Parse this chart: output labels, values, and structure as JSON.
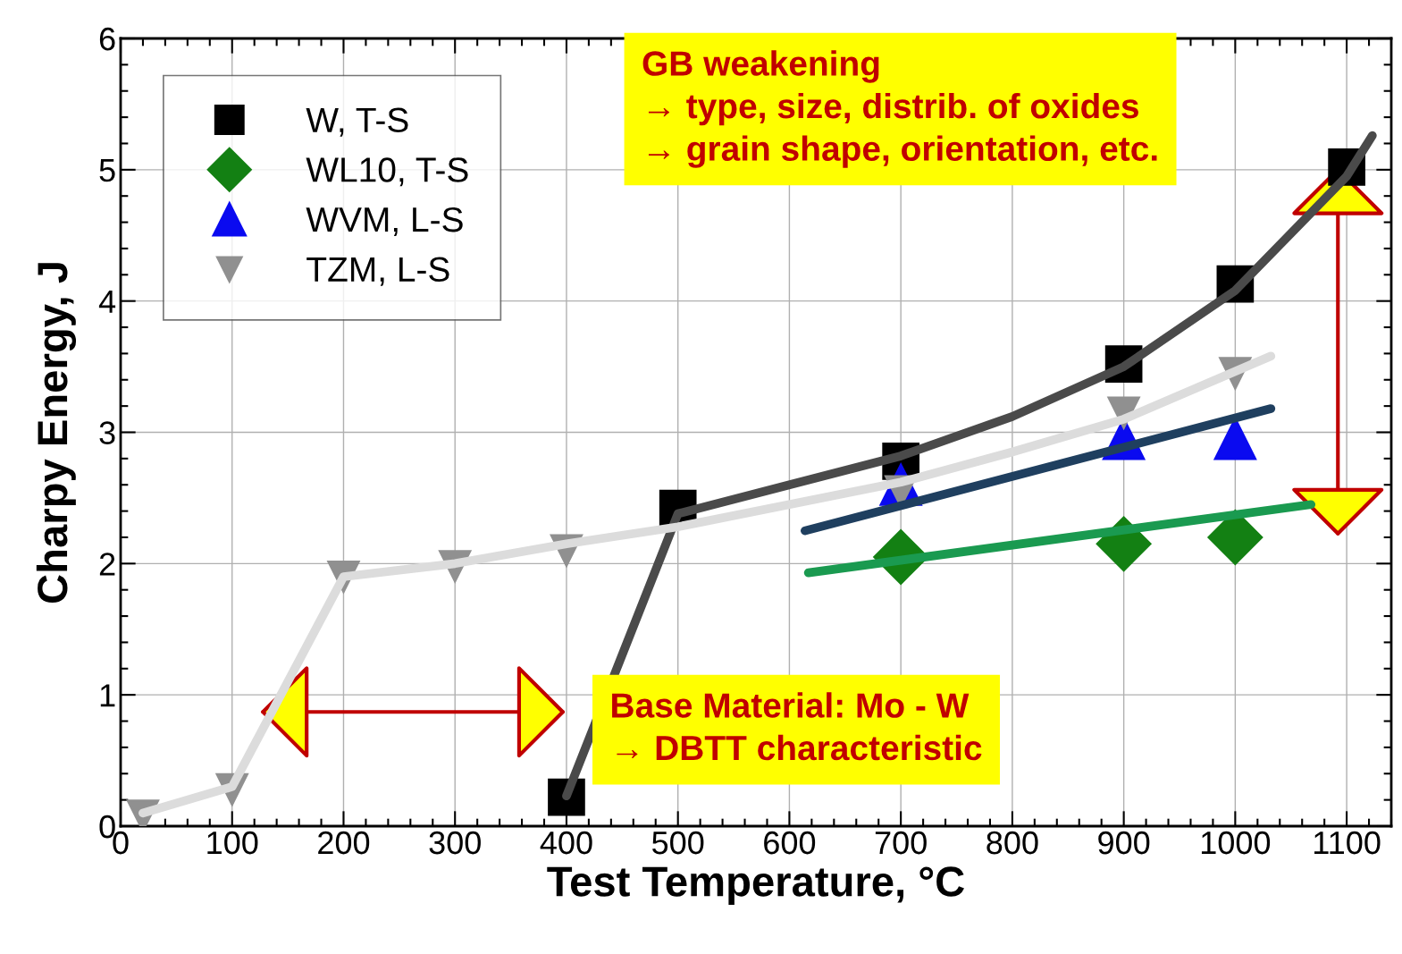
{
  "chart_data": {
    "type": "scatter",
    "xlabel": "Test Temperature, °C",
    "ylabel": "Charpy Energy, J",
    "xlim": [
      0,
      1140
    ],
    "xticks": [
      0,
      100,
      200,
      300,
      400,
      500,
      600,
      700,
      800,
      900,
      1000,
      1100
    ],
    "ylim": [
      0,
      6
    ],
    "yticks": [
      0,
      1,
      2,
      3,
      4,
      5,
      6
    ],
    "grid": true,
    "legend": "top left",
    "series": [
      {
        "type": "line",
        "color": "#4a4a4a",
        "x": [
          400,
          500,
          600,
          700,
          800,
          900,
          1000,
          1100,
          1123
        ],
        "values": [
          0.23,
          2.38,
          2.6,
          2.82,
          3.12,
          3.5,
          4.08,
          4.95,
          5.26
        ]
      },
      {
        "type": "line",
        "color": "#dcdcdc",
        "x": [
          20,
          100,
          200,
          300,
          400,
          500,
          600,
          700,
          800,
          900,
          1032
        ],
        "values": [
          0.1,
          0.3,
          1.9,
          2.0,
          2.15,
          2.28,
          2.45,
          2.62,
          2.85,
          3.1,
          3.58
        ]
      },
      {
        "type": "line",
        "color": "#1f3f5f",
        "x": [
          614,
          1032
        ],
        "values": [
          2.25,
          3.18
        ]
      },
      {
        "type": "line",
        "color": "#1a9a50",
        "x": [
          617,
          1068
        ],
        "values": [
          1.93,
          2.45
        ]
      },
      {
        "name": "W, T-S",
        "color": "#000000",
        "marker": "square",
        "x": [
          400,
          500,
          700,
          900,
          1000,
          1100
        ],
        "values": [
          0.22,
          2.42,
          2.78,
          3.52,
          4.13,
          5.02
        ]
      },
      {
        "name": "WL10, T-S",
        "color": "#138013",
        "marker": "diamond",
        "x": [
          700,
          900,
          1000
        ],
        "values": [
          2.05,
          2.15,
          2.2
        ]
      },
      {
        "name": "WVM, L-S",
        "color": "#0a0af0",
        "marker": "triangle",
        "x": [
          700,
          900,
          1000
        ],
        "values": [
          2.6,
          2.95,
          2.95
        ]
      },
      {
        "name": "TZM, L-S",
        "color": "#909090",
        "marker": "triangle_down",
        "x": [
          20,
          100,
          200,
          300,
          400,
          700,
          900,
          1000
        ],
        "values": [
          0.08,
          0.28,
          1.9,
          1.98,
          2.1,
          2.55,
          3.15,
          3.45
        ]
      }
    ],
    "annotations": [
      "GB weakening\n→ type, size, distrib. of oxides\n→ grain shape, orientation, etc.",
      "Base Material: Mo - W\n→ DBTT characteristic"
    ]
  }
}
